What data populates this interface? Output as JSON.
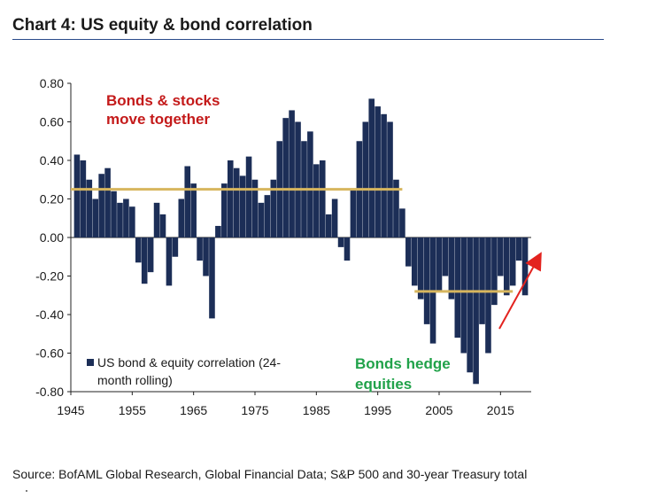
{
  "title": "Chart 4: US equity & bond correlation",
  "source": "Source: BofAML Global Research, Global Financial Data; S&P 500 and 30-year Treasury total",
  "colors": {
    "bar": "#1c2e57",
    "threshold": "#d7b65e",
    "red_text": "#c41a1a",
    "green_text": "#21a24a",
    "arrow": "#e3231f",
    "rule": "#2a4a8a"
  },
  "chart_data": {
    "type": "bar",
    "ylim": [
      -0.8,
      0.8
    ],
    "xlim": [
      1945,
      2020
    ],
    "ytick_labels": [
      "0.80",
      "0.60",
      "0.40",
      "0.20",
      "0.00",
      "-0.20",
      "-0.40",
      "-0.60",
      "-0.80"
    ],
    "xtick_labels": [
      "1945",
      "1955",
      "1965",
      "1975",
      "1985",
      "1995",
      "2005",
      "2015"
    ],
    "series": [
      {
        "name": "US bond & equity correlation (24-month rolling)",
        "x": [
          1946,
          1947,
          1948,
          1949,
          1950,
          1951,
          1952,
          1953,
          1954,
          1955,
          1956,
          1957,
          1958,
          1959,
          1960,
          1961,
          1962,
          1963,
          1964,
          1965,
          1966,
          1967,
          1968,
          1969,
          1970,
          1971,
          1972,
          1973,
          1974,
          1975,
          1976,
          1977,
          1978,
          1979,
          1980,
          1981,
          1982,
          1983,
          1984,
          1985,
          1986,
          1987,
          1988,
          1989,
          1990,
          1991,
          1992,
          1993,
          1994,
          1995,
          1996,
          1997,
          1998,
          1999,
          2000,
          2001,
          2002,
          2003,
          2004,
          2005,
          2006,
          2007,
          2008,
          2009,
          2010,
          2011,
          2012,
          2013,
          2014,
          2015,
          2016,
          2017,
          2018,
          2019
        ],
        "values": [
          0.43,
          0.4,
          0.3,
          0.2,
          0.33,
          0.36,
          0.24,
          0.18,
          0.2,
          0.16,
          -0.13,
          -0.24,
          -0.18,
          0.18,
          0.12,
          -0.25,
          -0.1,
          0.2,
          0.37,
          0.28,
          -0.12,
          -0.2,
          -0.42,
          0.06,
          0.28,
          0.4,
          0.36,
          0.32,
          0.42,
          0.3,
          0.18,
          0.22,
          0.3,
          0.5,
          0.62,
          0.66,
          0.6,
          0.5,
          0.55,
          0.38,
          0.4,
          0.12,
          0.2,
          -0.05,
          -0.12,
          0.25,
          0.5,
          0.6,
          0.72,
          0.68,
          0.64,
          0.6,
          0.3,
          0.15,
          -0.15,
          -0.25,
          -0.32,
          -0.45,
          -0.55,
          -0.28,
          -0.2,
          -0.32,
          -0.52,
          -0.6,
          -0.7,
          -0.76,
          -0.45,
          -0.6,
          -0.35,
          -0.2,
          -0.3,
          -0.25,
          -0.12,
          -0.3
        ]
      }
    ],
    "reference_lines": [
      {
        "x_from": 1945,
        "x_to": 1999,
        "y": 0.25
      },
      {
        "x_from": 2001,
        "x_to": 2017,
        "y": -0.28
      }
    ],
    "annotations": {
      "together_1": "Bonds & stocks",
      "together_2": "move together",
      "hedge_1": "Bonds hedge",
      "hedge_2": "equities"
    },
    "legend": {
      "line1": "US bond & equity correlation (24-",
      "line2": "month rolling)",
      "position": "bottom-left"
    },
    "grid": false
  }
}
